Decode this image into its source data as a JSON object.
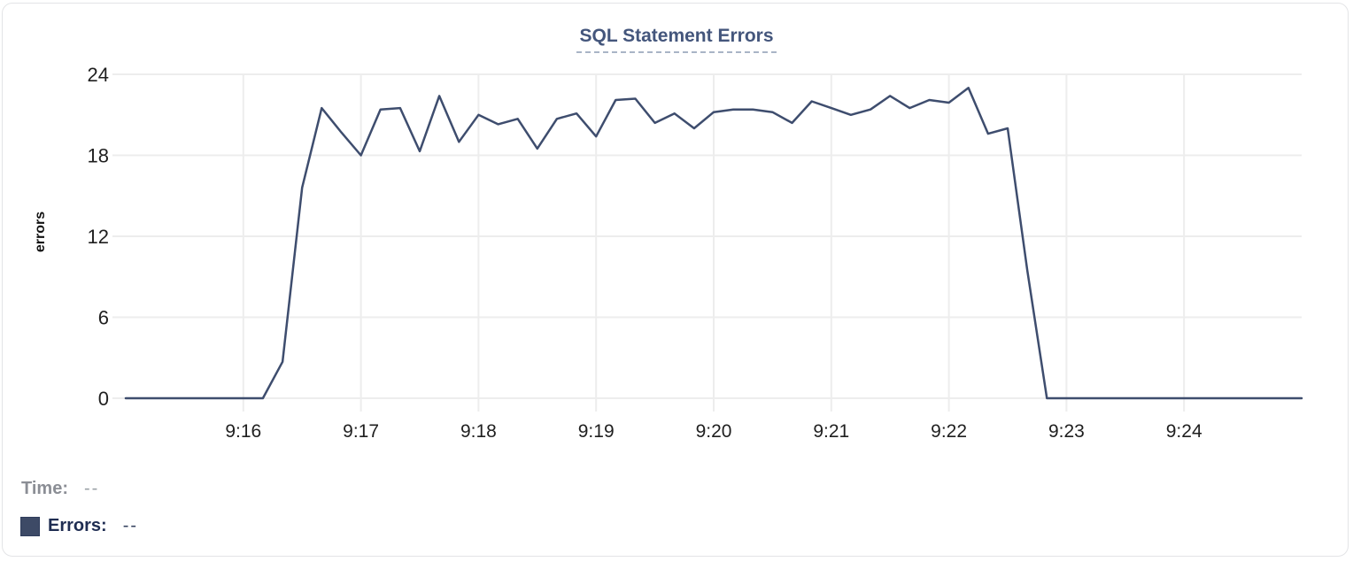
{
  "card": {
    "title": "SQL Statement Errors"
  },
  "tooltip": {
    "time_label": "Time:",
    "time_value": "--",
    "errors_label": "Errors:",
    "errors_value": "--"
  },
  "colors": {
    "line": "#3e4d6e",
    "legend_swatch": "#3d4a66",
    "grid": "#ededed",
    "title": "#44567c"
  },
  "chart_data": {
    "type": "line",
    "title": "SQL Statement Errors",
    "xlabel": "",
    "ylabel": "errors",
    "x_tick_labels": [
      "9:16",
      "9:17",
      "9:18",
      "9:19",
      "9:20",
      "9:21",
      "9:22",
      "9:23",
      "9:24"
    ],
    "y_ticks": [
      0,
      6,
      12,
      18,
      24
    ],
    "ylim": [
      0,
      24
    ],
    "x_start": "9:15:00",
    "x_end": "9:25:00",
    "grid": true,
    "legend_position": "below-left",
    "series": [
      {
        "name": "Errors",
        "times": [
          "9:15:00",
          "9:15:10",
          "9:15:20",
          "9:15:30",
          "9:15:40",
          "9:15:50",
          "9:16:00",
          "9:16:10",
          "9:16:20",
          "9:16:30",
          "9:16:40",
          "9:16:50",
          "9:17:00",
          "9:17:10",
          "9:17:20",
          "9:17:30",
          "9:17:40",
          "9:17:50",
          "9:18:00",
          "9:18:10",
          "9:18:20",
          "9:18:30",
          "9:18:40",
          "9:18:50",
          "9:19:00",
          "9:19:10",
          "9:19:20",
          "9:19:30",
          "9:19:40",
          "9:19:50",
          "9:20:00",
          "9:20:10",
          "9:20:20",
          "9:20:30",
          "9:20:40",
          "9:20:50",
          "9:21:00",
          "9:21:10",
          "9:21:20",
          "9:21:30",
          "9:21:40",
          "9:21:50",
          "9:22:00",
          "9:22:10",
          "9:22:20",
          "9:22:30",
          "9:22:40",
          "9:22:50",
          "9:23:00",
          "9:23:10",
          "9:23:20",
          "9:23:30",
          "9:23:40",
          "9:23:50",
          "9:24:00",
          "9:24:10",
          "9:24:20",
          "9:24:30",
          "9:24:40",
          "9:24:50",
          "9:25:00"
        ],
        "values": [
          0,
          0,
          0,
          0,
          0,
          0,
          0,
          0,
          2.7,
          15.6,
          21.5,
          19.7,
          18,
          21.4,
          21.5,
          18.3,
          22.4,
          19,
          21,
          20.3,
          20.7,
          18.5,
          20.7,
          21.1,
          19.4,
          22.1,
          22.2,
          20.4,
          21.1,
          20,
          21.2,
          21.4,
          21.4,
          21.2,
          20.4,
          22,
          21.5,
          21,
          21.4,
          22.4,
          21.5,
          22.1,
          21.9,
          23,
          19.6,
          20,
          9.5,
          0,
          0,
          0,
          0,
          0,
          0,
          0,
          0,
          0,
          0,
          0,
          0,
          0,
          0
        ]
      }
    ]
  }
}
